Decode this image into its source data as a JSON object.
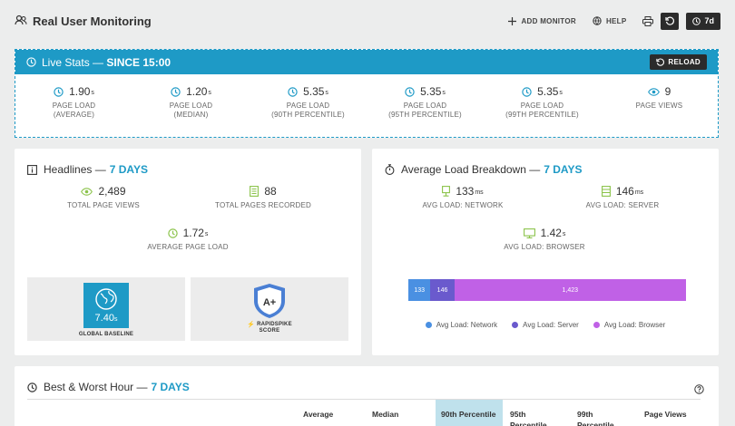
{
  "app": {
    "title": "Real User Monitoring"
  },
  "toolbar": {
    "add_monitor": "ADD MONITOR",
    "help": "HELP",
    "range": "7d"
  },
  "live": {
    "title": "Live Stats —",
    "since": "SINCE 15:00",
    "reload": "RELOAD",
    "stats": [
      {
        "value": "1.90",
        "unit": "s",
        "label1": "PAGE LOAD",
        "label2": "(AVERAGE)",
        "icon": "clock-icon"
      },
      {
        "value": "1.20",
        "unit": "s",
        "label1": "PAGE LOAD",
        "label2": "(MEDIAN)",
        "icon": "clock-icon"
      },
      {
        "value": "5.35",
        "unit": "s",
        "label1": "PAGE LOAD",
        "label2": "(90TH PERCENTILE)",
        "icon": "clock-icon"
      },
      {
        "value": "5.35",
        "unit": "s",
        "label1": "PAGE LOAD",
        "label2": "(95TH PERCENTILE)",
        "icon": "clock-icon"
      },
      {
        "value": "5.35",
        "unit": "s",
        "label1": "PAGE LOAD",
        "label2": "(99TH PERCENTILE)",
        "icon": "clock-icon"
      },
      {
        "value": "9",
        "unit": "",
        "label1": "PAGE VIEWS",
        "label2": "",
        "icon": "eye-icon"
      }
    ]
  },
  "headlines": {
    "title": "Headlines —",
    "period": "7 DAYS",
    "page_views": {
      "value": "2,489",
      "label": "TOTAL PAGE VIEWS"
    },
    "pages_recorded": {
      "value": "88",
      "label": "TOTAL PAGES RECORDED"
    },
    "avg_load": {
      "value": "1.72",
      "unit": "s",
      "label": "AVERAGE PAGE LOAD"
    },
    "baseline": {
      "value": "7.40",
      "unit": "s",
      "label": "GLOBAL BASELINE"
    },
    "score": {
      "grade": "A+",
      "brand": "RAPIDSPIKE",
      "label": "SCORE"
    }
  },
  "breakdown": {
    "title": "Average Load Breakdown —",
    "period": "7 DAYS",
    "network": {
      "value": "133",
      "unit": "ms",
      "label": "AVG LOAD: NETWORK"
    },
    "server": {
      "value": "146",
      "unit": "ms",
      "label": "AVG LOAD: SERVER"
    },
    "browser": {
      "value": "1.42",
      "unit": "s",
      "label": "AVG LOAD: BROWSER"
    }
  },
  "bestworst": {
    "title": "Best & Worst Hour —",
    "period": "7 DAYS",
    "columns": [
      "Average",
      "Median",
      "90th Percentile",
      "95th Percentile",
      "99th Percentile",
      "Page Views"
    ]
  },
  "chart_data": {
    "type": "bar",
    "stacked": true,
    "orientation": "horizontal",
    "series": [
      {
        "name": "Avg Load: Network",
        "values": [
          133
        ],
        "label": "133",
        "color": "#4a90e2"
      },
      {
        "name": "Avg Load: Server",
        "values": [
          146
        ],
        "label": "146",
        "color": "#6a5acd"
      },
      {
        "name": "Avg Load: Browser",
        "values": [
          1423
        ],
        "label": "1,423",
        "color": "#c061e6"
      }
    ],
    "legend": "bottom"
  }
}
